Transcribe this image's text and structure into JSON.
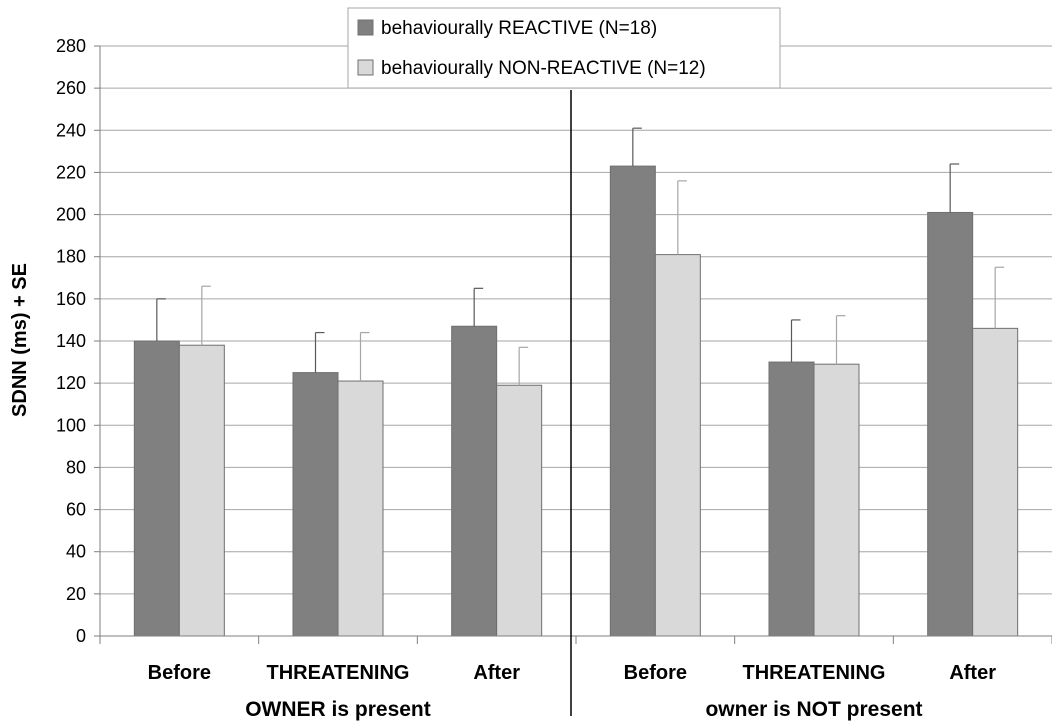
{
  "chart_data": {
    "type": "bar",
    "ylabel": "SDNN (ms) + SE",
    "ylim": [
      0,
      280
    ],
    "yticks": [
      "0",
      "20",
      "40",
      "60",
      "80",
      "100",
      "120",
      "140",
      "160",
      "180",
      "200",
      "220",
      "240",
      "260",
      "280"
    ],
    "grid": true,
    "legend_position": "top-center",
    "categories": [
      "Before",
      "THREATENING",
      "After",
      "Before",
      "THREATENING",
      "After"
    ],
    "groups": [
      {
        "label": "OWNER is present",
        "categories": [
          0,
          1,
          2
        ]
      },
      {
        "label": "owner is NOT present",
        "categories": [
          3,
          4,
          5
        ]
      }
    ],
    "series": [
      {
        "name": "behaviourally REACTIVE (N=18)",
        "color": "#808080",
        "values": [
          140,
          125,
          147,
          223,
          130,
          201
        ],
        "upper_error": [
          160,
          144,
          165,
          241,
          150,
          224
        ]
      },
      {
        "name": "behaviourally NON-REACTIVE (N=12)",
        "color": "#d9d9d9",
        "values": [
          138,
          121,
          119,
          181,
          129,
          146
        ],
        "upper_error": [
          166,
          144,
          137,
          216,
          152,
          175
        ]
      }
    ]
  }
}
